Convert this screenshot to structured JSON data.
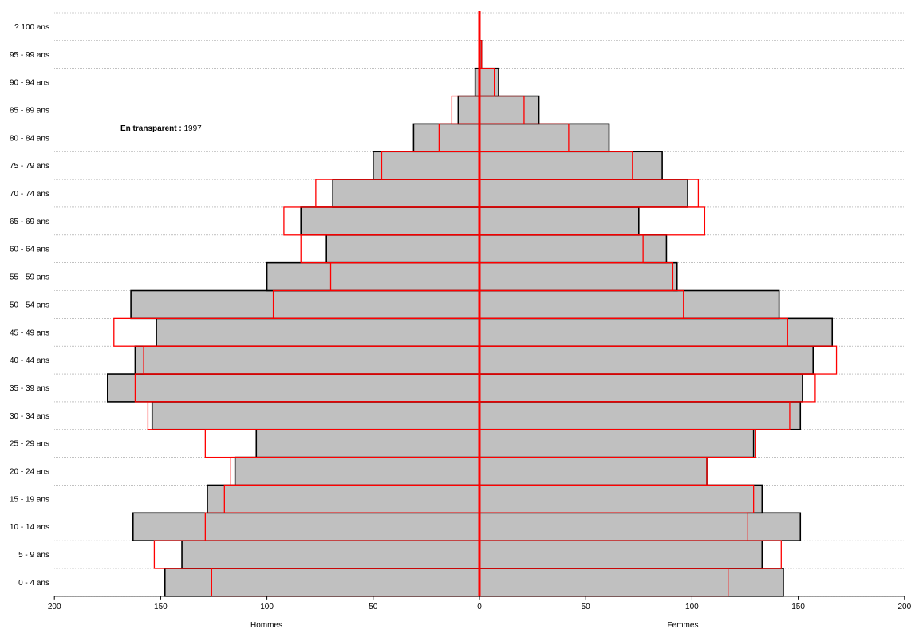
{
  "chart_data": {
    "type": "bar",
    "subtype": "population-pyramid",
    "categories": [
      "0 - 4 ans",
      "5 - 9 ans",
      "10 - 14 ans",
      "15 - 19 ans",
      "20 - 24 ans",
      "25 - 29 ans",
      "30 - 34 ans",
      "35 - 39 ans",
      "40 - 44 ans",
      "45 - 49 ans",
      "50 - 54 ans",
      "55 - 59 ans",
      "60 - 64 ans",
      "65 - 69 ans",
      "70 - 74 ans",
      "75 - 79 ans",
      "80 - 84 ans",
      "85 - 89 ans",
      "90 - 94 ans",
      "95 - 99 ans",
      "? 100 ans"
    ],
    "series": [
      {
        "name": "Hommes",
        "values": [
          148,
          140,
          163,
          128,
          115,
          105,
          154,
          175,
          162,
          152,
          164,
          100,
          72,
          84,
          69,
          50,
          31,
          10,
          2,
          0,
          0
        ]
      },
      {
        "name": "Femmes",
        "values": [
          143,
          133,
          151,
          133,
          107,
          129,
          151,
          152,
          157,
          166,
          141,
          93,
          88,
          75,
          98,
          86,
          61,
          28,
          9,
          1,
          0
        ]
      },
      {
        "name": "Hommes 1997",
        "values": [
          126,
          153,
          129,
          120,
          117,
          129,
          156,
          162,
          158,
          172,
          97,
          70,
          84,
          92,
          77,
          46,
          19,
          13,
          0,
          0,
          0
        ]
      },
      {
        "name": "Femmes 1997",
        "values": [
          117,
          142,
          126,
          129,
          107,
          130,
          146,
          158,
          168,
          145,
          96,
          91,
          77,
          106,
          103,
          72,
          42,
          21,
          7,
          1,
          0
        ]
      }
    ],
    "xlabel_left": "Hommes",
    "xlabel_right": "Femmes",
    "xticks": [
      200,
      150,
      100,
      50,
      0,
      50,
      100,
      150,
      200
    ],
    "xlim": [
      -200,
      200
    ],
    "annotation": {
      "bold": "En transparent :",
      "text": " 1997"
    },
    "gridlines": "horizontal dotted",
    "colors": {
      "current_fill": "#c0c0c0",
      "current_stroke": "#000000",
      "past_stroke": "#ff0000",
      "grid": "#9a9a9a"
    }
  }
}
